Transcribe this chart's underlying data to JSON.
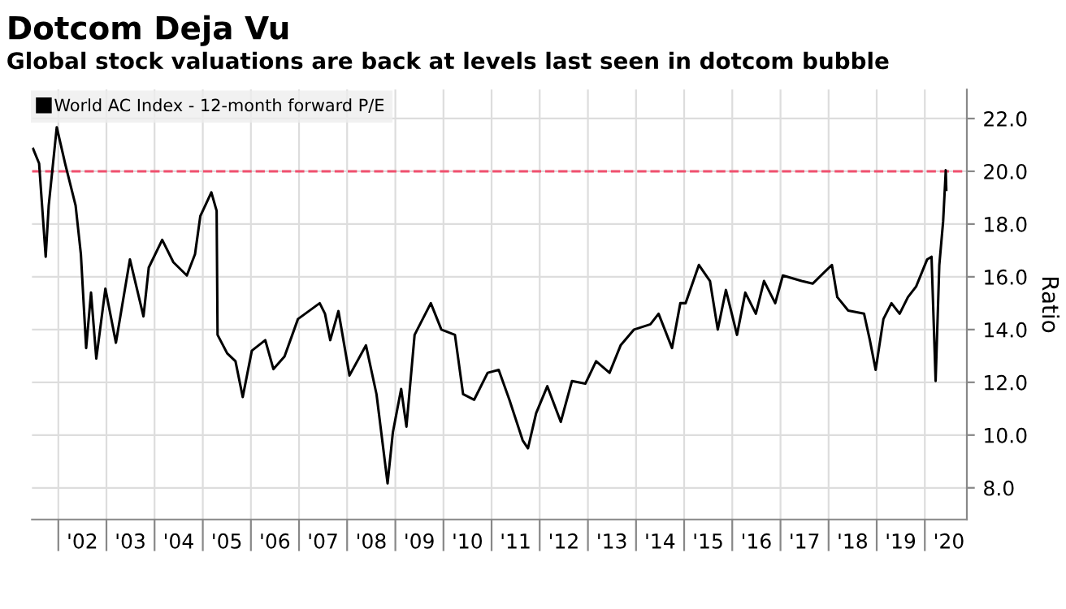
{
  "chart_data": {
    "type": "line",
    "title": "Dotcom Deja Vu",
    "subtitle": "Global stock valuations are back at levels last seen in dotcom bubble",
    "ylabel": "Ratio",
    "x": [
      "2001-06-24",
      "2001-08-08",
      "2001-09-27",
      "2001-10-20",
      "2001-12-20",
      "2002-02-21",
      "2002-05-12",
      "2002-06-21",
      "2002-07-31",
      "2002-09-06",
      "2002-10-16",
      "2002-12-24",
      "2003-03-14",
      "2003-06-28",
      "2003-10-09",
      "2003-11-18",
      "2004-02-28",
      "2004-05-23",
      "2004-09-02",
      "2004-11-03",
      "2004-12-13",
      "2005-03-07",
      "2005-04-16",
      "2005-04-23",
      "2005-07-05",
      "2005-09-06",
      "2005-10-31",
      "2006-01-08",
      "2006-04-20",
      "2006-06-21",
      "2006-09-13",
      "2006-12-24",
      "2007-06-07",
      "2007-07-17",
      "2007-08-26",
      "2007-10-27",
      "2008-01-19",
      "2008-05-23",
      "2008-08-11",
      "2008-11-03",
      "2008-12-13",
      "2009-02-14",
      "2009-03-26",
      "2009-05-27",
      "2009-09-27",
      "2009-12-16",
      "2010-03-29",
      "2010-05-30",
      "2010-08-22",
      "2010-12-02",
      "2011-02-24",
      "2011-05-16",
      "2011-08-25",
      "2011-10-04",
      "2011-12-05",
      "2012-02-28",
      "2012-06-09",
      "2012-09-02",
      "2012-12-13",
      "2013-03-04",
      "2013-06-14",
      "2013-09-06",
      "2013-12-17",
      "2014-04-20",
      "2014-06-21",
      "2014-10-01",
      "2014-12-03",
      "2015-01-12",
      "2015-04-23",
      "2015-07-16",
      "2015-09-13",
      "2015-11-14",
      "2016-02-06",
      "2016-04-09",
      "2016-06-28",
      "2016-08-29",
      "2016-11-22",
      "2017-01-19",
      "2017-06-10",
      "2017-09-02",
      "2018-01-26",
      "2018-03-08",
      "2018-05-30",
      "2018-09-27",
      "2018-11-10",
      "2018-12-24",
      "2019-02-21",
      "2019-04-23",
      "2019-06-24",
      "2019-08-26",
      "2019-10-27",
      "2020-01-19",
      "2020-02-21",
      "2020-03-23",
      "2020-04-20",
      "2020-05-19",
      "2020-06-08",
      "2020-06-12"
    ],
    "series": [
      {
        "name": "World AC Index - 12-month forward P/E",
        "color": "#000000",
        "values": [
          20.85,
          20.3,
          16.76,
          18.7,
          21.67,
          20.3,
          18.7,
          16.86,
          13.3,
          15.4,
          12.9,
          15.55,
          13.5,
          16.66,
          14.5,
          16.35,
          17.4,
          16.55,
          16.05,
          16.86,
          18.3,
          19.2,
          18.5,
          13.8,
          13.1,
          12.8,
          11.44,
          13.2,
          13.6,
          12.5,
          12.98,
          14.4,
          15.0,
          14.6,
          13.6,
          14.7,
          12.26,
          13.4,
          11.55,
          8.17,
          10.1,
          11.75,
          10.32,
          13.8,
          15.0,
          14.0,
          13.8,
          11.55,
          11.34,
          12.36,
          12.47,
          11.34,
          9.8,
          9.5,
          10.83,
          11.85,
          10.5,
          12.05,
          11.95,
          12.8,
          12.36,
          13.4,
          14.0,
          14.2,
          14.6,
          13.3,
          15.0,
          15.0,
          16.45,
          15.84,
          14.0,
          15.5,
          13.8,
          15.4,
          14.6,
          15.84,
          15.0,
          16.05,
          15.84,
          15.74,
          16.45,
          15.23,
          14.72,
          14.6,
          13.6,
          12.47,
          14.4,
          15.0,
          14.6,
          15.23,
          15.63,
          16.66,
          16.76,
          12.05,
          16.45,
          18.1,
          20.04,
          19.3
        ]
      }
    ],
    "ref_lines": [
      {
        "axis": "y",
        "value": 20,
        "color": "#f0506e",
        "line_style": "dashed"
      }
    ],
    "xlim": [
      "2001-06-15",
      "2020-11-15"
    ],
    "xticks": [
      {
        "value": "2002-01-01",
        "label": null
      },
      {
        "value": "2002-07-02",
        "label": "'02"
      },
      {
        "value": "2003-01-01",
        "label": null
      },
      {
        "value": "2003-07-02",
        "label": "'03"
      },
      {
        "value": "2004-01-01",
        "label": null
      },
      {
        "value": "2004-07-02",
        "label": "'04"
      },
      {
        "value": "2005-01-01",
        "label": null
      },
      {
        "value": "2005-07-02",
        "label": "'05"
      },
      {
        "value": "2006-01-01",
        "label": null
      },
      {
        "value": "2006-07-02",
        "label": "'06"
      },
      {
        "value": "2007-01-01",
        "label": null
      },
      {
        "value": "2007-07-02",
        "label": "'07"
      },
      {
        "value": "2008-01-01",
        "label": null
      },
      {
        "value": "2008-07-02",
        "label": "'08"
      },
      {
        "value": "2009-01-01",
        "label": null
      },
      {
        "value": "2009-07-02",
        "label": "'09"
      },
      {
        "value": "2010-01-01",
        "label": null
      },
      {
        "value": "2010-07-02",
        "label": "'10"
      },
      {
        "value": "2011-01-01",
        "label": null
      },
      {
        "value": "2011-07-02",
        "label": "'11"
      },
      {
        "value": "2012-01-01",
        "label": null
      },
      {
        "value": "2012-07-02",
        "label": "'12"
      },
      {
        "value": "2013-01-01",
        "label": null
      },
      {
        "value": "2013-07-02",
        "label": "'13"
      },
      {
        "value": "2014-01-01",
        "label": null
      },
      {
        "value": "2014-07-02",
        "label": "'14"
      },
      {
        "value": "2015-01-01",
        "label": null
      },
      {
        "value": "2015-07-02",
        "label": "'15"
      },
      {
        "value": "2016-01-01",
        "label": null
      },
      {
        "value": "2016-07-02",
        "label": "'16"
      },
      {
        "value": "2017-01-01",
        "label": null
      },
      {
        "value": "2017-07-02",
        "label": "'17"
      },
      {
        "value": "2018-01-01",
        "label": null
      },
      {
        "value": "2018-07-02",
        "label": "'18"
      },
      {
        "value": "2019-01-01",
        "label": null
      },
      {
        "value": "2019-07-02",
        "label": "'19"
      },
      {
        "value": "2020-01-01",
        "label": null
      },
      {
        "value": "2020-07-02",
        "label": "'20"
      }
    ],
    "ylim": [
      6.8,
      23.1
    ],
    "yticks": [
      {
        "value": 8,
        "label": "8.0"
      },
      {
        "value": 10,
        "label": "10.0"
      },
      {
        "value": 12,
        "label": "12.0"
      },
      {
        "value": 14,
        "label": "14.0"
      },
      {
        "value": 16,
        "label": "16.0"
      },
      {
        "value": 18,
        "label": "18.0"
      },
      {
        "value": 20,
        "label": "20.0"
      },
      {
        "value": 22,
        "label": "22.0"
      }
    ],
    "grid": true,
    "legend": "top left",
    "line_style": "solid",
    "marker": "none"
  }
}
